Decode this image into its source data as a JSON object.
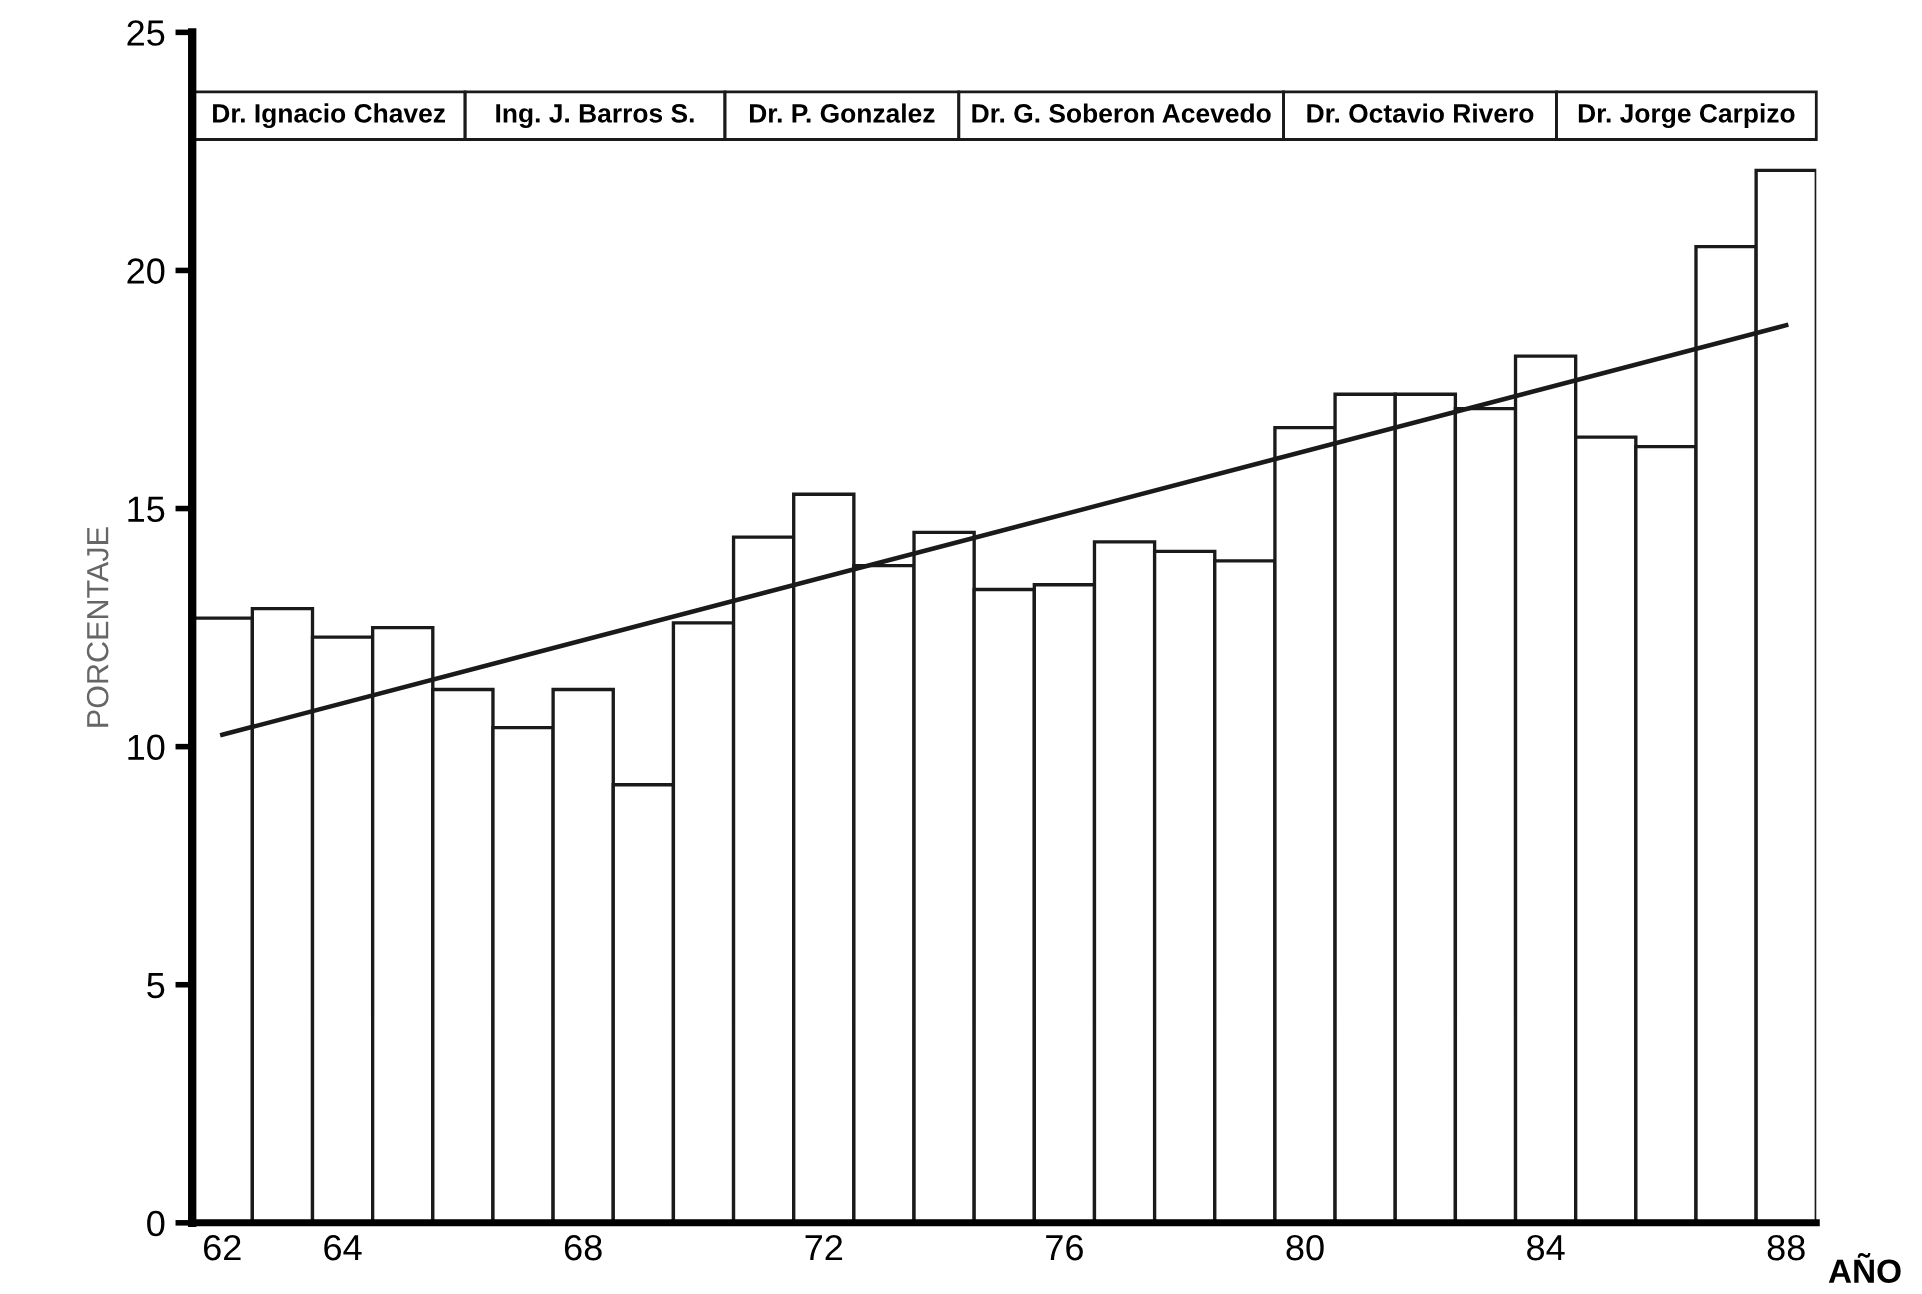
{
  "chart_data": {
    "type": "bar",
    "xlabel": "AÑO",
    "ylabel": "PORCENTAJE",
    "x": [
      62,
      63,
      64,
      65,
      66,
      67,
      68,
      69,
      70,
      71,
      72,
      73,
      74,
      75,
      76,
      77,
      78,
      79,
      80,
      81,
      82,
      83,
      84,
      85,
      86,
      87,
      88
    ],
    "xlim": [
      61.5,
      88.5
    ],
    "xticks": [
      62,
      64,
      68,
      72,
      76,
      80,
      84,
      88
    ],
    "ylim": [
      0,
      25
    ],
    "yticks": [
      0,
      5,
      10,
      15,
      20,
      25
    ],
    "series": [
      {
        "color": "#ffffff",
        "values": [
          12.7,
          12.9,
          12.3,
          12.5,
          11.2,
          10.4,
          11.2,
          9.2,
          12.6,
          14.4,
          15.3,
          13.8,
          14.5,
          13.3,
          13.4,
          14.3,
          14.1,
          13.9,
          16.7,
          17.4,
          17.4,
          17.1,
          18.2,
          16.5,
          16.3,
          20.5,
          22.1
        ]
      },
      {
        "type": "line",
        "color": "#1a1a1a",
        "x": [
          62,
          88
        ],
        "values": [
          10.25,
          18.85
        ]
      }
    ],
    "annotations": [
      "Dr. Ignacio Chavez",
      "Ing. J. Barros S.",
      "Dr. P. Gonzalez",
      "Dr. G. Soberon Acevedo",
      "Dr. Octavio Rivero",
      "Dr. Jorge Carpizo"
    ],
    "grid": false,
    "legend": false
  }
}
